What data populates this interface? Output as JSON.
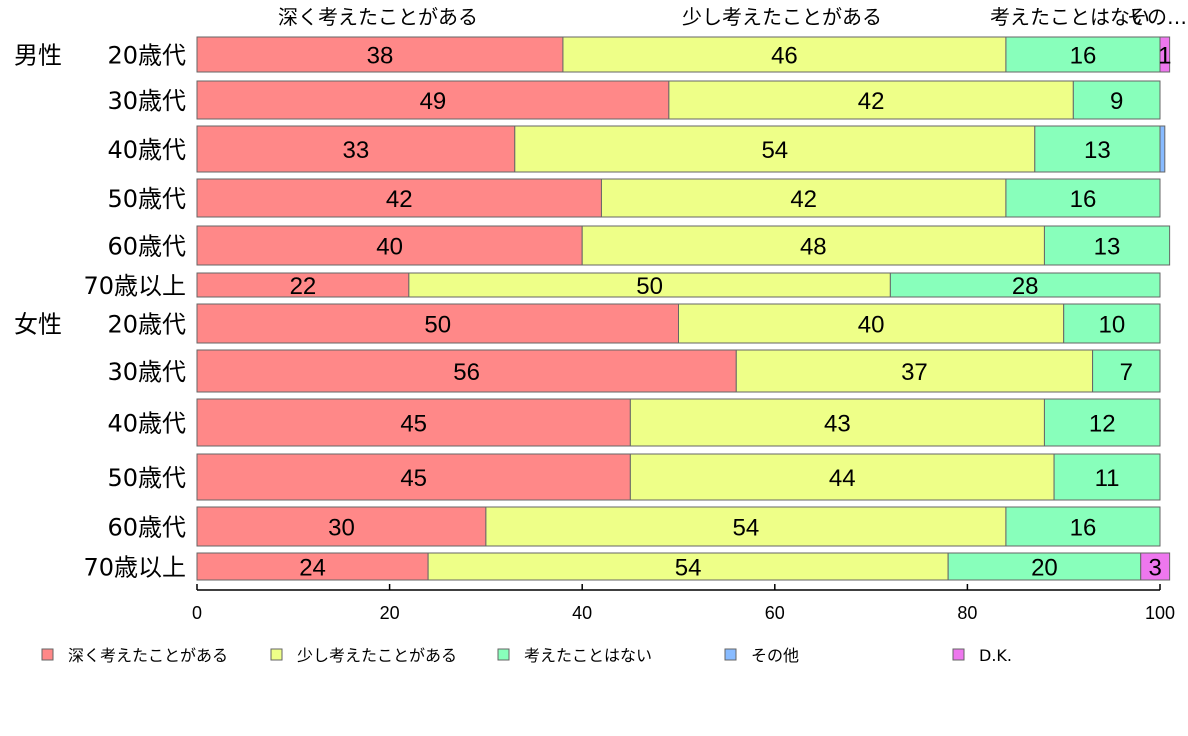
{
  "chart_data": {
    "type": "bar",
    "orientation": "horizontal",
    "stacked": true,
    "group_labels": [
      "男性",
      "女性"
    ],
    "categories": [
      "20歳代",
      "30歳代",
      "40歳代",
      "50歳代",
      "60歳代",
      "70歳以上",
      "20歳代",
      "30歳代",
      "40歳代",
      "50歳代",
      "60歳代",
      "70歳以上"
    ],
    "series": [
      {
        "name": "深く考えたことがある",
        "color": "#ff8888",
        "values": [
          38,
          49,
          33,
          42,
          40,
          22,
          50,
          56,
          45,
          45,
          30,
          24
        ]
      },
      {
        "name": "少し考えたことがある",
        "color": "#eeff88",
        "values": [
          46,
          42,
          54,
          42,
          48,
          50,
          40,
          37,
          43,
          44,
          54,
          54
        ]
      },
      {
        "name": "考えたことはない",
        "color": "#88ffbb",
        "values": [
          16,
          9,
          13,
          16,
          13,
          28,
          10,
          7,
          12,
          11,
          16,
          20
        ]
      },
      {
        "name": "その他",
        "color": "#88bbff",
        "values": [
          0,
          0,
          0.5,
          0,
          0,
          0,
          0,
          0,
          0,
          0,
          0,
          0
        ]
      },
      {
        "name": "D.K.",
        "color": "#ee77ee",
        "values": [
          1,
          0,
          0,
          0,
          0,
          0,
          0,
          0,
          0,
          0,
          0,
          3
        ]
      }
    ],
    "value_labels": [
      [
        "38",
        "46",
        "16",
        "",
        "1"
      ],
      [
        "49",
        "42",
        "9",
        "",
        ""
      ],
      [
        "33",
        "54",
        "13",
        "",
        ""
      ],
      [
        "42",
        "42",
        "16",
        "",
        ""
      ],
      [
        "40",
        "48",
        "13",
        "",
        ""
      ],
      [
        "22",
        "50",
        "28",
        "",
        ""
      ],
      [
        "50",
        "40",
        "10",
        "",
        ""
      ],
      [
        "56",
        "37",
        "7",
        "",
        ""
      ],
      [
        "45",
        "43",
        "12",
        "",
        ""
      ],
      [
        "45",
        "44",
        "11",
        "",
        ""
      ],
      [
        "30",
        "54",
        "16",
        "",
        ""
      ],
      [
        "24",
        "54",
        "20",
        "",
        "3"
      ]
    ],
    "top_labels": [
      "深く考えたことがある",
      "少し考えたことがある",
      "考えたことはない",
      "その…"
    ],
    "xlim": [
      0,
      100
    ],
    "xticks": [
      "0",
      "20",
      "40",
      "60",
      "80",
      "100"
    ],
    "grid": false,
    "legend_position": "bottom"
  }
}
